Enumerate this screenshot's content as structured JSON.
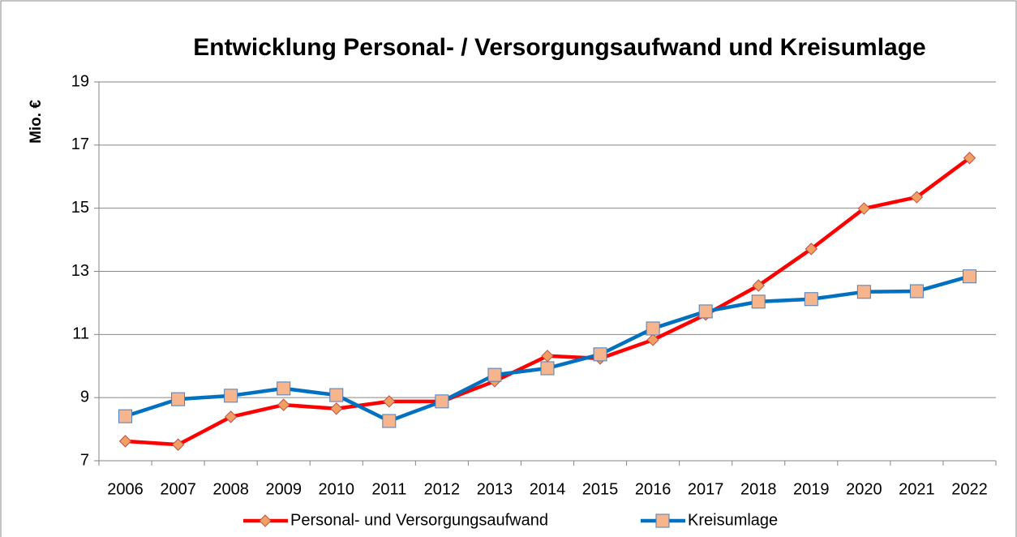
{
  "chart_data": {
    "type": "line",
    "title": "Entwicklung Personal- / Versorgungsaufwand und Kreisumlage",
    "y_label": "Mio. €",
    "categories": [
      "2006",
      "2007",
      "2008",
      "2009",
      "2010",
      "2011",
      "2012",
      "2013",
      "2014",
      "2015",
      "2016",
      "2017",
      "2018",
      "2019",
      "2020",
      "2021",
      "2022"
    ],
    "series": [
      {
        "name": "Personal- und Versorgungsaufwand",
        "color": "#ff0000",
        "marker": "diamond",
        "marker_color": "#f0a060",
        "values": [
          7.62,
          7.51,
          8.39,
          8.77,
          8.65,
          8.88,
          8.88,
          9.52,
          10.32,
          10.24,
          10.83,
          11.63,
          12.55,
          13.71,
          14.99,
          15.35,
          16.59
        ]
      },
      {
        "name": "Kreisumlage",
        "color": "#0070c0",
        "marker": "square",
        "marker_color": "#f7b58e",
        "values": [
          8.41,
          8.95,
          9.06,
          9.29,
          9.08,
          8.26,
          8.88,
          9.72,
          9.93,
          10.37,
          11.19,
          11.73,
          12.04,
          12.12,
          12.35,
          12.37,
          12.84
        ]
      }
    ],
    "ylim": [
      7,
      19
    ],
    "yticks": [
      7,
      9,
      11,
      13,
      15,
      17,
      19
    ],
    "grid": true,
    "legend": "bottom"
  }
}
